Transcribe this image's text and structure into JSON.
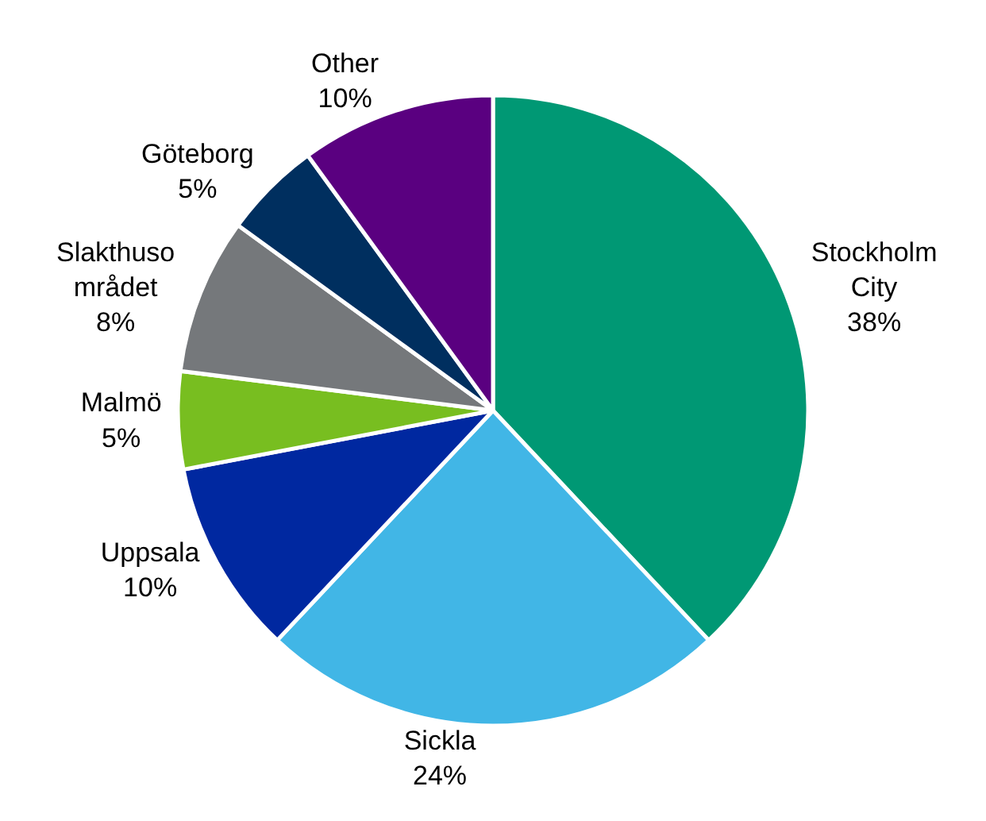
{
  "chart_data": {
    "type": "pie",
    "categories": [
      "Stockholm\nCity",
      "Sickla",
      "Uppsala",
      "Malmö",
      "Slakthuso\nmrådet",
      "Göteborg",
      "Other"
    ],
    "values": [
      38,
      24,
      10,
      5,
      8,
      5,
      10
    ],
    "value_labels": [
      "38%",
      "24%",
      "10%",
      "5%",
      "8%",
      "5%",
      "10%"
    ],
    "colors": [
      "#009874",
      "#41b6e6",
      "#0028a0",
      "#78be20",
      "#75787b",
      "#002f5f",
      "#5a0080"
    ],
    "legend": false
  }
}
